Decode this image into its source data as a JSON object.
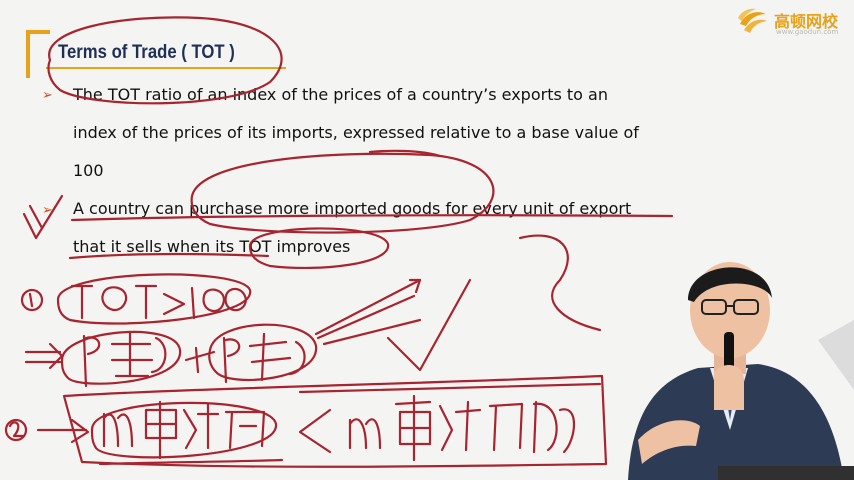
{
  "slide": {
    "title": "Terms of Trade ( TOT )",
    "bullets": [
      {
        "lines": [
          "The TOT ratio of an index of the prices of a country’s exports to an",
          "index of the prices of its imports, expressed relative to a base value of",
          "100"
        ]
      },
      {
        "lines": [
          "A country can purchase more imported goods for every unit of export",
          "that it sells when its TOT improves"
        ]
      }
    ],
    "bullet_marker": "➢"
  },
  "logo": {
    "name": "高顿网校",
    "url": "www.gaodun.com"
  },
  "annotation": {
    "color": "#a8242f",
    "handwriting": [
      "①",
      "TOT > 100",
      "P出口",
      "P进口",
      "②",
      "m单位出口",
      "< m单位进口"
    ]
  },
  "colors": {
    "accent": "#e8a21a",
    "title": "#1f2f55",
    "ink": "#a8242f"
  }
}
